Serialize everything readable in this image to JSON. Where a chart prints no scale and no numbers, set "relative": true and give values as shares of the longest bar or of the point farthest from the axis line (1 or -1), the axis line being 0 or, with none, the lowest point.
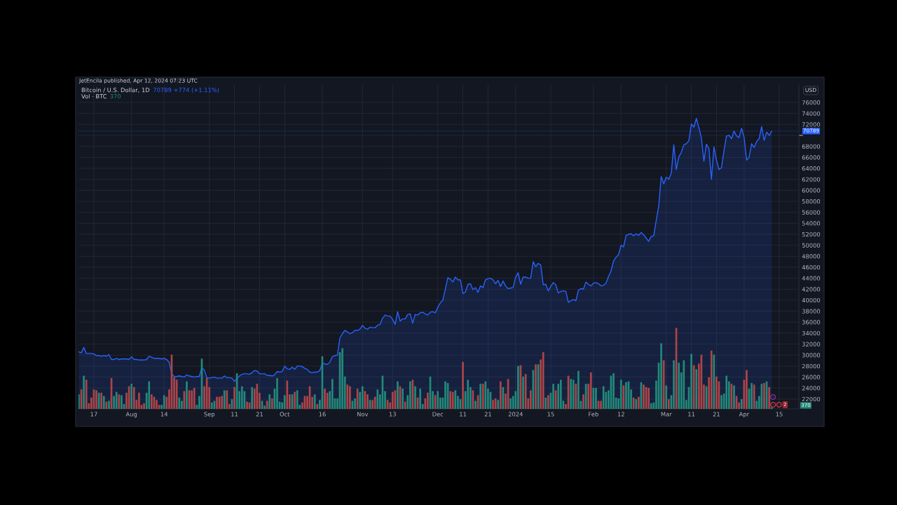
{
  "chart_data": [
    {
      "type": "area",
      "title": "Bitcoin / U.S. Dollar, 1D",
      "annotations": [
        "JetEncila published, Apr 12, 2024 07:23 UTC",
        "70789 +774 (+1.11%)",
        "2"
      ],
      "ylabel": "USD",
      "color": "#2962ff",
      "grid": true,
      "x": [
        "2023-07-11",
        "2023-07-12",
        "2023-07-13",
        "2023-07-14",
        "2023-07-15",
        "2023-07-16",
        "2023-07-17",
        "2023-07-18",
        "2023-07-19",
        "2023-07-20",
        "2023-07-21",
        "2023-07-22",
        "2023-07-23",
        "2023-07-24",
        "2023-07-25",
        "2023-07-26",
        "2023-07-27",
        "2023-07-28",
        "2023-07-29",
        "2023-07-30",
        "2023-07-31",
        "2023-08-01",
        "2023-08-02",
        "2023-08-03",
        "2023-08-04",
        "2023-08-05",
        "2023-08-06",
        "2023-08-07",
        "2023-08-08",
        "2023-08-09",
        "2023-08-10",
        "2023-08-11",
        "2023-08-12",
        "2023-08-13",
        "2023-08-14",
        "2023-08-15",
        "2023-08-16",
        "2023-08-17",
        "2023-08-18",
        "2023-08-19",
        "2023-08-20",
        "2023-08-21",
        "2023-08-22",
        "2023-08-23",
        "2023-08-24",
        "2023-08-25",
        "2023-08-26",
        "2023-08-27",
        "2023-08-28",
        "2023-08-29",
        "2023-08-30",
        "2023-08-31",
        "2023-09-01",
        "2023-09-02",
        "2023-09-03",
        "2023-09-04",
        "2023-09-05",
        "2023-09-06",
        "2023-09-07",
        "2023-09-08",
        "2023-09-09",
        "2023-09-10",
        "2023-09-11",
        "2023-09-12",
        "2023-09-13",
        "2023-09-14",
        "2023-09-15",
        "2023-09-16",
        "2023-09-17",
        "2023-09-18",
        "2023-09-19",
        "2023-09-20",
        "2023-09-21",
        "2023-09-22",
        "2023-09-23",
        "2023-09-24",
        "2023-09-25",
        "2023-09-26",
        "2023-09-27",
        "2023-09-28",
        "2023-09-29",
        "2023-09-30",
        "2023-10-01",
        "2023-10-02",
        "2023-10-03",
        "2023-10-04",
        "2023-10-05",
        "2023-10-06",
        "2023-10-07",
        "2023-10-08",
        "2023-10-09",
        "2023-10-10",
        "2023-10-11",
        "2023-10-12",
        "2023-10-13",
        "2023-10-14",
        "2023-10-15",
        "2023-10-16",
        "2023-10-17",
        "2023-10-18",
        "2023-10-19",
        "2023-10-20",
        "2023-10-21",
        "2023-10-22",
        "2023-10-23",
        "2023-10-24",
        "2023-10-25",
        "2023-10-26",
        "2023-10-27",
        "2023-10-28",
        "2023-10-29",
        "2023-10-30",
        "2023-10-31",
        "2023-11-01",
        "2023-11-02",
        "2023-11-03",
        "2023-11-04",
        "2023-11-05",
        "2023-11-06",
        "2023-11-07",
        "2023-11-08",
        "2023-11-09",
        "2023-11-10",
        "2023-11-11",
        "2023-11-12",
        "2023-11-13",
        "2023-11-14",
        "2023-11-15",
        "2023-11-16",
        "2023-11-17",
        "2023-11-18",
        "2023-11-19",
        "2023-11-20",
        "2023-11-21",
        "2023-11-22",
        "2023-11-23",
        "2023-11-24",
        "2023-11-25",
        "2023-11-26",
        "2023-11-27",
        "2023-11-28",
        "2023-11-29",
        "2023-11-30",
        "2023-12-01",
        "2023-12-02",
        "2023-12-03",
        "2023-12-04",
        "2023-12-05",
        "2023-12-06",
        "2023-12-07",
        "2023-12-08",
        "2023-12-09",
        "2023-12-10",
        "2023-12-11",
        "2023-12-12",
        "2023-12-13",
        "2023-12-14",
        "2023-12-15",
        "2023-12-16",
        "2023-12-17",
        "2023-12-18",
        "2023-12-19",
        "2023-12-20",
        "2023-12-21",
        "2023-12-22",
        "2023-12-23",
        "2023-12-24",
        "2023-12-25",
        "2023-12-26",
        "2023-12-27",
        "2023-12-28",
        "2023-12-29",
        "2023-12-30",
        "2023-12-31",
        "2024-01-01",
        "2024-01-02",
        "2024-01-03",
        "2024-01-04",
        "2024-01-05",
        "2024-01-06",
        "2024-01-07",
        "2024-01-08",
        "2024-01-09",
        "2024-01-10",
        "2024-01-11",
        "2024-01-12",
        "2024-01-13",
        "2024-01-14",
        "2024-01-15",
        "2024-01-16",
        "2024-01-17",
        "2024-01-18",
        "2024-01-19",
        "2024-01-20",
        "2024-01-21",
        "2024-01-22",
        "2024-01-23",
        "2024-01-24",
        "2024-01-25",
        "2024-01-26",
        "2024-01-27",
        "2024-01-28",
        "2024-01-29",
        "2024-01-30",
        "2024-01-31",
        "2024-02-01",
        "2024-02-02",
        "2024-02-03",
        "2024-02-04",
        "2024-02-05",
        "2024-02-06",
        "2024-02-07",
        "2024-02-08",
        "2024-02-09",
        "2024-02-10",
        "2024-02-11",
        "2024-02-12",
        "2024-02-13",
        "2024-02-14",
        "2024-02-15",
        "2024-02-16",
        "2024-02-17",
        "2024-02-18",
        "2024-02-19",
        "2024-02-20",
        "2024-02-21",
        "2024-02-22",
        "2024-02-23",
        "2024-02-24",
        "2024-02-25",
        "2024-02-26",
        "2024-02-27",
        "2024-02-28",
        "2024-02-29",
        "2024-03-01",
        "2024-03-02",
        "2024-03-03",
        "2024-03-04",
        "2024-03-05",
        "2024-03-06",
        "2024-03-07",
        "2024-03-08",
        "2024-03-09",
        "2024-03-10",
        "2024-03-11",
        "2024-03-12",
        "2024-03-13",
        "2024-03-14",
        "2024-03-15",
        "2024-03-16",
        "2024-03-17",
        "2024-03-18",
        "2024-03-19",
        "2024-03-20",
        "2024-03-21",
        "2024-03-22",
        "2024-03-23",
        "2024-03-24",
        "2024-03-25",
        "2024-03-26",
        "2024-03-27",
        "2024-03-28",
        "2024-03-29",
        "2024-03-30",
        "2024-03-31",
        "2024-04-01",
        "2024-04-02",
        "2024-04-03",
        "2024-04-04",
        "2024-04-05",
        "2024-04-06",
        "2024-04-07",
        "2024-04-08",
        "2024-04-09",
        "2024-04-10",
        "2024-04-11",
        "2024-04-12"
      ],
      "values": [
        30600,
        30400,
        31400,
        30300,
        30300,
        30300,
        30200,
        29900,
        29900,
        29800,
        29900,
        29800,
        30100,
        29200,
        29200,
        29400,
        29200,
        29300,
        29300,
        29300,
        29200,
        29700,
        29200,
        29200,
        29100,
        29100,
        29100,
        29200,
        29800,
        29600,
        29400,
        29400,
        29400,
        29300,
        29400,
        29200,
        28700,
        26600,
        26100,
        26100,
        26200,
        26100,
        26000,
        26400,
        26200,
        26100,
        26000,
        26100,
        26100,
        27700,
        27300,
        25900,
        25800,
        25900,
        26000,
        25800,
        25800,
        25800,
        26200,
        25900,
        25900,
        25800,
        25200,
        25800,
        26200,
        26500,
        26600,
        26600,
        26500,
        26800,
        27200,
        27100,
        26600,
        26600,
        26600,
        26300,
        26300,
        26200,
        26400,
        27000,
        26900,
        27000,
        28000,
        27500,
        27400,
        27800,
        27400,
        28000,
        28000,
        27900,
        27600,
        27400,
        26900,
        26800,
        26900,
        26900,
        27200,
        28500,
        28400,
        28300,
        28700,
        29700,
        29900,
        30000,
        33100,
        33900,
        34500,
        34200,
        33900,
        34100,
        34500,
        34500,
        34700,
        35400,
        34900,
        34700,
        35100,
        35000,
        35000,
        35400,
        35600,
        36700,
        37300,
        37100,
        37100,
        36500,
        35600,
        37900,
        36200,
        36600,
        36600,
        37400,
        37500,
        35800,
        37400,
        37300,
        37700,
        37800,
        37500,
        37300,
        37800,
        37900,
        37700,
        38700,
        39500,
        40000,
        42000,
        44100,
        43800,
        43300,
        44200,
        43700,
        43700,
        41200,
        41500,
        42900,
        43000,
        41900,
        42300,
        41400,
        42600,
        42300,
        43700,
        43900,
        44000,
        43700,
        43000,
        43600,
        42500,
        43500,
        42600,
        42100,
        42200,
        42300,
        44200,
        45000,
        42900,
        44200,
        44200,
        44000,
        44000,
        47000,
        46100,
        46700,
        46400,
        42800,
        42900,
        41700,
        42500,
        43200,
        42800,
        41300,
        41600,
        41700,
        41600,
        39600,
        39900,
        40100,
        39900,
        41800,
        42100,
        42000,
        43300,
        42900,
        42600,
        43100,
        43200,
        43000,
        42600,
        42700,
        43100,
        44300,
        45300,
        47100,
        47800,
        48300,
        50000,
        49700,
        51800,
        52000,
        52100,
        51700,
        52100,
        51800,
        52300,
        51900,
        51300,
        50700,
        51600,
        51700,
        54500,
        57100,
        62500,
        61200,
        62400,
        62000,
        63100,
        68300,
        63800,
        66100,
        66900,
        68300,
        68500,
        69000,
        72100,
        71500,
        73100,
        71400,
        69500,
        65300,
        68400,
        67600,
        62000,
        67900,
        65500,
        63800,
        64100,
        67200,
        69900,
        70000,
        69400,
        70800,
        69900,
        69600,
        71300,
        69700,
        65500,
        66000,
        68500,
        67800,
        68900,
        69400,
        71600,
        69100,
        70600,
        70000,
        70789
      ],
      "xlim": [
        "2023-07-10T21:00",
        "2024-04-22T20:00"
      ],
      "ylim": [
        20200,
        79200
      ],
      "xticks": [
        {
          "value": "2023-07-17",
          "label": "17"
        },
        {
          "value": "2023-08-01",
          "label": "Aug"
        },
        {
          "value": "2023-08-14",
          "label": "14"
        },
        {
          "value": "2023-09-01",
          "label": "Sep"
        },
        {
          "value": "2023-09-11",
          "label": "11"
        },
        {
          "value": "2023-09-21",
          "label": "21"
        },
        {
          "value": "2023-10-01",
          "label": "Oct"
        },
        {
          "value": "2023-10-16",
          "label": "16"
        },
        {
          "value": "2023-11-01",
          "label": "Nov"
        },
        {
          "value": "2023-11-13",
          "label": "13"
        },
        {
          "value": "2023-12-01",
          "label": "Dec"
        },
        {
          "value": "2023-12-11",
          "label": "11"
        },
        {
          "value": "2023-12-21",
          "label": "21"
        },
        {
          "value": "2024-01-01",
          "label": "2024"
        },
        {
          "value": "2024-01-15",
          "label": "15"
        },
        {
          "value": "2024-02-01",
          "label": "Feb"
        },
        {
          "value": "2024-02-12",
          "label": "12"
        },
        {
          "value": "2024-03-01",
          "label": "Mar"
        },
        {
          "value": "2024-03-11",
          "label": "11"
        },
        {
          "value": "2024-03-21",
          "label": "21"
        },
        {
          "value": "2024-04-01",
          "label": "Apr"
        },
        {
          "value": "2024-04-15",
          "label": "15"
        }
      ],
      "yticks": [
        22000,
        24000,
        26000,
        28000,
        30000,
        32000,
        34000,
        36000,
        38000,
        40000,
        42000,
        44000,
        46000,
        48000,
        50000,
        52000,
        54000,
        56000,
        58000,
        60000,
        62000,
        64000,
        66000,
        68000,
        {
          "value": 70000,
          "label": null
        },
        72000,
        74000,
        76000
      ],
      "ref_lines": [
        {
          "axis": "y",
          "value": 70789,
          "label": "70789",
          "color": "#2962ff",
          "line_style": "dotted"
        }
      ]
    },
    {
      "type": "bar",
      "subtitle": "Vol · BTC",
      "annotations": [
        "370",
        "370"
      ],
      "relative": true,
      "x": [
        "2023-07-11",
        "2023-07-12",
        "2023-07-13",
        "2023-07-14",
        "2023-07-15",
        "2023-07-16",
        "2023-07-17",
        "2023-07-18",
        "2023-07-19",
        "2023-07-20",
        "2023-07-21",
        "2023-07-22",
        "2023-07-23",
        "2023-07-24",
        "2023-07-25",
        "2023-07-26",
        "2023-07-27",
        "2023-07-28",
        "2023-07-29",
        "2023-07-30",
        "2023-07-31",
        "2023-08-01",
        "2023-08-02",
        "2023-08-03",
        "2023-08-04",
        "2023-08-05",
        "2023-08-06",
        "2023-08-07",
        "2023-08-08",
        "2023-08-09",
        "2023-08-10",
        "2023-08-11",
        "2023-08-12",
        "2023-08-13",
        "2023-08-14",
        "2023-08-15",
        "2023-08-16",
        "2023-08-17",
        "2023-08-18",
        "2023-08-19",
        "2023-08-20",
        "2023-08-21",
        "2023-08-22",
        "2023-08-23",
        "2023-08-24",
        "2023-08-25",
        "2023-08-26",
        "2023-08-27",
        "2023-08-28",
        "2023-08-29",
        "2023-08-30",
        "2023-08-31",
        "2023-09-01",
        "2023-09-02",
        "2023-09-03",
        "2023-09-04",
        "2023-09-05",
        "2023-09-06",
        "2023-09-07",
        "2023-09-08",
        "2023-09-09",
        "2023-09-10",
        "2023-09-11",
        "2023-09-12",
        "2023-09-13",
        "2023-09-14",
        "2023-09-15",
        "2023-09-16",
        "2023-09-17",
        "2023-09-18",
        "2023-09-19",
        "2023-09-20",
        "2023-09-21",
        "2023-09-22",
        "2023-09-23",
        "2023-09-24",
        "2023-09-25",
        "2023-09-26",
        "2023-09-27",
        "2023-09-28",
        "2023-09-29",
        "2023-09-30",
        "2023-10-01",
        "2023-10-02",
        "2023-10-03",
        "2023-10-04",
        "2023-10-05",
        "2023-10-06",
        "2023-10-07",
        "2023-10-08",
        "2023-10-09",
        "2023-10-10",
        "2023-10-11",
        "2023-10-12",
        "2023-10-13",
        "2023-10-14",
        "2023-10-15",
        "2023-10-16",
        "2023-10-17",
        "2023-10-18",
        "2023-10-19",
        "2023-10-20",
        "2023-10-21",
        "2023-10-22",
        "2023-10-23",
        "2023-10-24",
        "2023-10-25",
        "2023-10-26",
        "2023-10-27",
        "2023-10-28",
        "2023-10-29",
        "2023-10-30",
        "2023-10-31",
        "2023-11-01",
        "2023-11-02",
        "2023-11-03",
        "2023-11-04",
        "2023-11-05",
        "2023-11-06",
        "2023-11-07",
        "2023-11-08",
        "2023-11-09",
        "2023-11-10",
        "2023-11-11",
        "2023-11-12",
        "2023-11-13",
        "2023-11-14",
        "2023-11-15",
        "2023-11-16",
        "2023-11-17",
        "2023-11-18",
        "2023-11-19",
        "2023-11-20",
        "2023-11-21",
        "2023-11-22",
        "2023-11-23",
        "2023-11-24",
        "2023-11-25",
        "2023-11-26",
        "2023-11-27",
        "2023-11-28",
        "2023-11-29",
        "2023-11-30",
        "2023-12-01",
        "2023-12-02",
        "2023-12-03",
        "2023-12-04",
        "2023-12-05",
        "2023-12-06",
        "2023-12-07",
        "2023-12-08",
        "2023-12-09",
        "2023-12-10",
        "2023-12-11",
        "2023-12-12",
        "2023-12-13",
        "2023-12-14",
        "2023-12-15",
        "2023-12-16",
        "2023-12-17",
        "2023-12-18",
        "2023-12-19",
        "2023-12-20",
        "2023-12-21",
        "2023-12-22",
        "2023-12-23",
        "2023-12-24",
        "2023-12-25",
        "2023-12-26",
        "2023-12-27",
        "2023-12-28",
        "2023-12-29",
        "2023-12-30",
        "2023-12-31",
        "2024-01-01",
        "2024-01-02",
        "2024-01-03",
        "2024-01-04",
        "2024-01-05",
        "2024-01-06",
        "2024-01-07",
        "2024-01-08",
        "2024-01-09",
        "2024-01-10",
        "2024-01-11",
        "2024-01-12",
        "2024-01-13",
        "2024-01-14",
        "2024-01-15",
        "2024-01-16",
        "2024-01-17",
        "2024-01-18",
        "2024-01-19",
        "2024-01-20",
        "2024-01-21",
        "2024-01-22",
        "2024-01-23",
        "2024-01-24",
        "2024-01-25",
        "2024-01-26",
        "2024-01-27",
        "2024-01-28",
        "2024-01-29",
        "2024-01-30",
        "2024-01-31",
        "2024-02-01",
        "2024-02-02",
        "2024-02-03",
        "2024-02-04",
        "2024-02-05",
        "2024-02-06",
        "2024-02-07",
        "2024-02-08",
        "2024-02-09",
        "2024-02-10",
        "2024-02-11",
        "2024-02-12",
        "2024-02-13",
        "2024-02-14",
        "2024-02-15",
        "2024-02-16",
        "2024-02-17",
        "2024-02-18",
        "2024-02-19",
        "2024-02-20",
        "2024-02-21",
        "2024-02-22",
        "2024-02-23",
        "2024-02-24",
        "2024-02-25",
        "2024-02-26",
        "2024-02-27",
        "2024-02-28",
        "2024-02-29",
        "2024-03-01",
        "2024-03-02",
        "2024-03-03",
        "2024-03-04",
        "2024-03-05",
        "2024-03-06",
        "2024-03-07",
        "2024-03-08",
        "2024-03-09",
        "2024-03-10",
        "2024-03-11",
        "2024-03-12",
        "2024-03-13",
        "2024-03-14",
        "2024-03-15",
        "2024-03-16",
        "2024-03-17",
        "2024-03-18",
        "2024-03-19",
        "2024-03-20",
        "2024-03-21",
        "2024-03-22",
        "2024-03-23",
        "2024-03-24",
        "2024-03-25",
        "2024-03-26",
        "2024-03-27",
        "2024-03-28",
        "2024-03-29",
        "2024-03-30",
        "2024-03-31",
        "2024-04-01",
        "2024-04-02",
        "2024-04-03",
        "2024-04-04",
        "2024-04-05",
        "2024-04-06",
        "2024-04-07",
        "2024-04-08",
        "2024-04-09",
        "2024-04-10",
        "2024-04-11",
        "2024-04-12"
      ],
      "values": [
        0.18,
        0.24,
        0.41,
        0.36,
        0.07,
        0.14,
        0.24,
        0.23,
        0.2,
        0.2,
        0.16,
        0.09,
        0.1,
        0.38,
        0.16,
        0.21,
        0.18,
        0.17,
        0.06,
        0.2,
        0.28,
        0.31,
        0.27,
        0.11,
        0.2,
        0.05,
        0.07,
        0.2,
        0.34,
        0.18,
        0.15,
        0.11,
        0.05,
        0.05,
        0.17,
        0.15,
        0.24,
        0.67,
        0.39,
        0.36,
        0.14,
        0.1,
        0.22,
        0.34,
        0.23,
        0.23,
        0.26,
        0.05,
        0.16,
        0.62,
        0.28,
        0.38,
        0.27,
        0.08,
        0.1,
        0.15,
        0.15,
        0.16,
        0.23,
        0.23,
        0.06,
        0.12,
        0.27,
        0.44,
        0.22,
        0.28,
        0.22,
        0.09,
        0.08,
        0.27,
        0.25,
        0.31,
        0.2,
        0.1,
        0.04,
        0.1,
        0.18,
        0.13,
        0.25,
        0.38,
        0.09,
        0.08,
        0.17,
        0.35,
        0.18,
        0.18,
        0.21,
        0.23,
        0.05,
        0.08,
        0.16,
        0.16,
        0.28,
        0.15,
        0.18,
        0.06,
        0.11,
        0.65,
        0.25,
        0.2,
        0.22,
        0.37,
        0.13,
        0.13,
        0.7,
        0.75,
        0.4,
        0.3,
        0.28,
        0.1,
        0.13,
        0.25,
        0.21,
        0.28,
        0.22,
        0.18,
        0.11,
        0.11,
        0.15,
        0.24,
        0.18,
        0.41,
        0.22,
        0.11,
        0.08,
        0.21,
        0.23,
        0.34,
        0.28,
        0.25,
        0.09,
        0.17,
        0.34,
        0.36,
        0.28,
        0.14,
        0.25,
        0.06,
        0.13,
        0.2,
        0.4,
        0.22,
        0.17,
        0.22,
        0.14,
        0.14,
        0.34,
        0.32,
        0.22,
        0.21,
        0.23,
        0.16,
        0.12,
        0.58,
        0.22,
        0.36,
        0.27,
        0.23,
        0.1,
        0.17,
        0.31,
        0.31,
        0.34,
        0.25,
        0.21,
        0.11,
        0.13,
        0.11,
        0.34,
        0.27,
        0.19,
        0.37,
        0.13,
        0.16,
        0.22,
        0.53,
        0.54,
        0.4,
        0.43,
        0.13,
        0.23,
        0.48,
        0.55,
        0.55,
        0.61,
        0.7,
        0.14,
        0.17,
        0.2,
        0.31,
        0.23,
        0.31,
        0.36,
        0.1,
        0.06,
        0.41,
        0.37,
        0.36,
        0.31,
        0.47,
        0.1,
        0.18,
        0.31,
        0.31,
        0.45,
        0.26,
        0.26,
        0.1,
        0.1,
        0.28,
        0.21,
        0.23,
        0.41,
        0.44,
        0.14,
        0.13,
        0.36,
        0.29,
        0.33,
        0.34,
        0.24,
        0.14,
        0.12,
        0.15,
        0.33,
        0.3,
        0.27,
        0.26,
        0.07,
        0.08,
        0.35,
        0.57,
        0.81,
        0.6,
        0.29,
        0.12,
        0.17,
        0.6,
        1.0,
        0.57,
        0.45,
        0.6,
        0.11,
        0.27,
        0.68,
        0.54,
        0.49,
        0.56,
        0.67,
        0.3,
        0.28,
        0.39,
        0.72,
        0.67,
        0.4,
        0.34,
        0.17,
        0.19,
        0.41,
        0.34,
        0.31,
        0.29,
        0.16,
        0.08,
        0.12,
        0.36,
        0.48,
        0.25,
        0.32,
        0.3,
        0.1,
        0.16,
        0.31,
        0.32,
        0.34,
        0.27,
        0.02
      ],
      "colors": [
        "#23897a",
        "#ad4548",
        "#23897a",
        "#ad4548",
        "#ad4548",
        "#ad4548",
        "#ad4548",
        "#ad4548",
        "#23897a",
        "#ad4548",
        "#23897a",
        "#ad4548",
        "#23897a",
        "#ad4548",
        "#23897a",
        "#23897a",
        "#ad4548",
        "#23897a",
        "#23897a",
        "#ad4548",
        "#ad4548",
        "#23897a",
        "#ad4548",
        "#ad4548",
        "#ad4548",
        "#ad4548",
        "#ad4548",
        "#23897a",
        "#23897a",
        "#ad4548",
        "#ad4548",
        "#ad4548",
        "#ad4548",
        "#23897a",
        "#23897a",
        "#ad4548",
        "#ad4548",
        "#ad4548",
        "#ad4548",
        "#ad4548",
        "#23897a",
        "#23897a",
        "#ad4548",
        "#23897a",
        "#ad4548",
        "#ad4548",
        "#ad4548",
        "#23897a",
        "#23897a",
        "#23897a",
        "#ad4548",
        "#ad4548",
        "#ad4548",
        "#23897a",
        "#23897a",
        "#ad4548",
        "#ad4548",
        "#ad4548",
        "#23897a",
        "#ad4548",
        "#ad4548",
        "#23897a",
        "#ad4548",
        "#23897a",
        "#23897a",
        "#23897a",
        "#23897a",
        "#ad4548",
        "#ad4548",
        "#23897a",
        "#ad4548",
        "#ad4548",
        "#ad4548",
        "#23897a",
        "#23897a",
        "#ad4548",
        "#23897a",
        "#ad4548",
        "#23897a",
        "#23897a",
        "#23897a",
        "#23897a",
        "#23897a",
        "#ad4548",
        "#ad4548",
        "#23897a",
        "#ad4548",
        "#23897a",
        "#23897a",
        "#ad4548",
        "#ad4548",
        "#ad4548",
        "#ad4548",
        "#ad4548",
        "#23897a",
        "#ad4548",
        "#23897a",
        "#23897a",
        "#ad4548",
        "#ad4548",
        "#23897a",
        "#23897a",
        "#23897a",
        "#23897a",
        "#23897a",
        "#23897a",
        "#23897a",
        "#ad4548",
        "#ad4548",
        "#23897a",
        "#23897a",
        "#ad4548",
        "#23897a",
        "#23897a",
        "#ad4548",
        "#ad4548",
        "#23897a",
        "#ad4548",
        "#ad4548",
        "#23897a",
        "#23897a",
        "#23897a",
        "#23897a",
        "#ad4548",
        "#ad4548",
        "#ad4548",
        "#ad4548",
        "#23897a",
        "#ad4548",
        "#23897a",
        "#ad4548",
        "#23897a",
        "#23897a",
        "#ad4548",
        "#23897a",
        "#ad4548",
        "#23897a",
        "#23897a",
        "#ad4548",
        "#ad4548",
        "#23897a",
        "#23897a",
        "#ad4548",
        "#23897a",
        "#23897a",
        "#23897a",
        "#23897a",
        "#23897a",
        "#ad4548",
        "#ad4548",
        "#23897a",
        "#23897a",
        "#23897a",
        "#ad4548",
        "#23897a",
        "#23897a",
        "#23897a",
        "#ad4548",
        "#23897a",
        "#ad4548",
        "#23897a",
        "#ad4548",
        "#23897a",
        "#23897a",
        "#23897a",
        "#ad4548",
        "#ad4548",
        "#23897a",
        "#ad4548",
        "#23897a",
        "#ad4548",
        "#ad4548",
        "#23897a",
        "#23897a",
        "#23897a",
        "#23897a",
        "#ad4548",
        "#23897a",
        "#ad4548",
        "#ad4548",
        "#ad4548",
        "#23897a",
        "#ad4548",
        "#23897a",
        "#ad4548",
        "#ad4548",
        "#23897a",
        "#ad4548",
        "#23897a",
        "#23897a",
        "#ad4548",
        "#23897a",
        "#23897a",
        "#23897a",
        "#ad4548",
        "#ad4548",
        "#23897a",
        "#23897a",
        "#ad4548",
        "#23897a",
        "#23897a",
        "#ad4548",
        "#23897a",
        "#ad4548",
        "#ad4548",
        "#23897a",
        "#23897a",
        "#ad4548",
        "#ad4548",
        "#23897a",
        "#23897a",
        "#23897a",
        "#23897a",
        "#23897a",
        "#23897a",
        "#23897a",
        "#23897a",
        "#ad4548",
        "#23897a",
        "#23897a",
        "#23897a",
        "#ad4548",
        "#23897a",
        "#ad4548",
        "#23897a",
        "#ad4548",
        "#ad4548",
        "#ad4548",
        "#23897a",
        "#23897a",
        "#23897a",
        "#23897a",
        "#23897a",
        "#ad4548",
        "#23897a",
        "#ad4548",
        "#23897a",
        "#23897a",
        "#ad4548",
        "#23897a",
        "#23897a",
        "#23897a",
        "#23897a",
        "#23897a",
        "#23897a",
        "#ad4548",
        "#23897a",
        "#ad4548",
        "#ad4548",
        "#ad4548",
        "#23897a",
        "#ad4548",
        "#ad4548",
        "#23897a",
        "#ad4548",
        "#ad4548",
        "#23897a",
        "#23897a",
        "#23897a",
        "#23897a",
        "#ad4548",
        "#23897a",
        "#ad4548",
        "#ad4548",
        "#23897a",
        "#ad4548",
        "#ad4548",
        "#23897a",
        "#23897a",
        "#ad4548",
        "#23897a",
        "#23897a",
        "#23897a",
        "#ad4548",
        "#23897a",
        "#ad4548",
        "#23897a"
      ],
      "xlim": [
        "2023-07-10T21:00",
        "2024-04-22T20:00"
      ]
    }
  ]
}
